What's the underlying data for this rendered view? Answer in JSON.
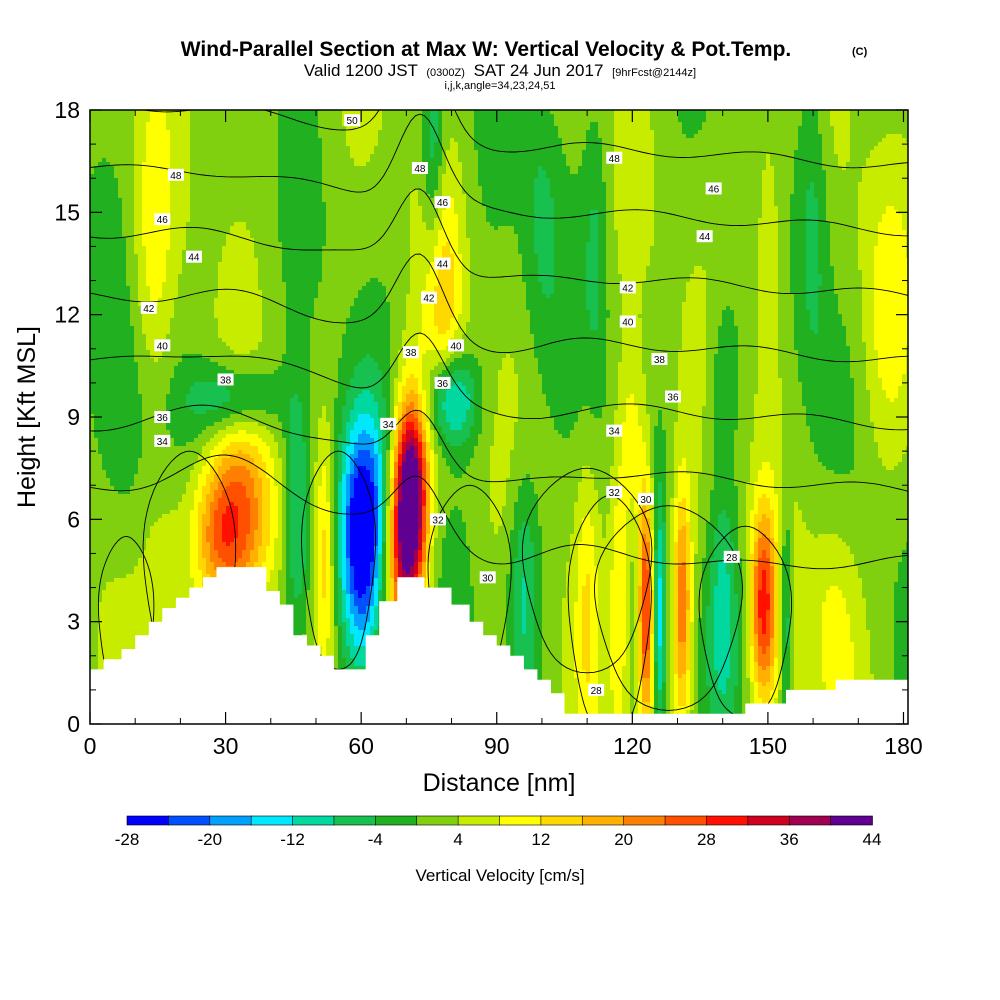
{
  "header": {
    "title": "Wind-Parallel Section at Max W: Vertical Velocity & Pot.Temp.",
    "title_tag": "(C)",
    "sub_valid": "Valid 1200 JST",
    "sub_zulu": "(0300Z)",
    "sub_date": "SAT 24 Jun 2017",
    "sub_fcst": "[9hrFcst@2144z]",
    "sub_indices": "i,j,k,angle=34,23,24,51"
  },
  "chart_data": {
    "type": "heatmap",
    "title": "Wind-Parallel Section at Max W: Vertical Velocity & Pot.Temp.",
    "xlabel": "Distance [nm]",
    "ylabel": "Height [Kft MSL]",
    "xlim": [
      0,
      181
    ],
    "ylim": [
      0,
      18
    ],
    "x_ticks": [
      0,
      30,
      60,
      90,
      120,
      150,
      180
    ],
    "y_ticks": [
      0,
      3,
      6,
      9,
      12,
      15,
      18
    ],
    "x_tick_labels": [
      "0",
      "30",
      "60",
      "90",
      "120",
      "150",
      "180"
    ],
    "y_tick_labels": [
      "0",
      "3",
      "6",
      "9",
      "12",
      "15",
      "18"
    ],
    "colorbar": {
      "label": "Vertical Velocity [cm/s]",
      "bounds": [
        -28,
        -24,
        -20,
        -16,
        -12,
        -8,
        -4,
        0,
        4,
        8,
        12,
        16,
        20,
        24,
        28,
        32,
        36,
        40,
        44
      ],
      "tick_labels": [
        "-28",
        "-20",
        "-12",
        "-4",
        "4",
        "12",
        "20",
        "28",
        "36",
        "44"
      ],
      "colors": [
        "#0000ff",
        "#0050ff",
        "#00a0ff",
        "#00e8ff",
        "#00d8a0",
        "#18c050",
        "#20b020",
        "#80d010",
        "#c8ec00",
        "#ffff00",
        "#ffd800",
        "#ffb000",
        "#ff8000",
        "#ff5000",
        "#ff1000",
        "#d00020",
        "#a00050",
        "#600090"
      ]
    },
    "terrain_kft": [
      [
        0,
        1.6
      ],
      [
        3,
        1.6
      ],
      [
        3,
        1.9
      ],
      [
        7,
        1.9
      ],
      [
        7,
        2.2
      ],
      [
        10,
        2.2
      ],
      [
        10,
        2.6
      ],
      [
        13,
        2.6
      ],
      [
        13,
        3.0
      ],
      [
        16,
        3.0
      ],
      [
        16,
        3.4
      ],
      [
        19,
        3.4
      ],
      [
        19,
        3.7
      ],
      [
        22,
        3.7
      ],
      [
        22,
        4.0
      ],
      [
        25,
        4.0
      ],
      [
        25,
        4.3
      ],
      [
        28,
        4.3
      ],
      [
        28,
        4.6
      ],
      [
        39,
        4.6
      ],
      [
        39,
        3.9
      ],
      [
        42,
        3.9
      ],
      [
        42,
        3.5
      ],
      [
        45,
        3.5
      ],
      [
        45,
        2.6
      ],
      [
        48,
        2.6
      ],
      [
        48,
        2.3
      ],
      [
        51,
        2.3
      ],
      [
        51,
        2.0
      ],
      [
        54,
        2.0
      ],
      [
        54,
        1.6
      ],
      [
        61,
        1.6
      ],
      [
        61,
        2.6
      ],
      [
        64,
        2.6
      ],
      [
        64,
        3.6
      ],
      [
        68,
        3.6
      ],
      [
        68,
        4.3
      ],
      [
        74,
        4.3
      ],
      [
        74,
        4.0
      ],
      [
        80,
        4.0
      ],
      [
        80,
        3.5
      ],
      [
        84,
        3.5
      ],
      [
        84,
        3.0
      ],
      [
        87,
        3.0
      ],
      [
        87,
        2.6
      ],
      [
        90,
        2.6
      ],
      [
        90,
        2.3
      ],
      [
        93,
        2.3
      ],
      [
        93,
        2.0
      ],
      [
        96,
        2.0
      ],
      [
        96,
        1.6
      ],
      [
        99,
        1.6
      ],
      [
        99,
        1.3
      ],
      [
        102,
        1.3
      ],
      [
        102,
        0.9
      ],
      [
        105,
        0.9
      ],
      [
        105,
        0.3
      ],
      [
        145,
        0.3
      ],
      [
        145,
        0.6
      ],
      [
        154,
        0.6
      ],
      [
        154,
        1.0
      ],
      [
        165,
        1.0
      ],
      [
        165,
        1.3
      ],
      [
        181,
        1.3
      ]
    ],
    "w_features": [
      {
        "x": 34,
        "z": 6.0,
        "w": 20,
        "sx": 5,
        "sz": 2.0
      },
      {
        "x": 28,
        "z": 5.5,
        "w": 14,
        "sx": 4,
        "sz": 1.5
      },
      {
        "x": 18,
        "z": 5.0,
        "w": 6,
        "sx": 5,
        "sz": 2.0
      },
      {
        "x": 46,
        "z": 6.0,
        "w": -14,
        "sx": 2.2,
        "sz": 2.5
      },
      {
        "x": 52,
        "z": 5.0,
        "w": 10,
        "sx": 1.4,
        "sz": 2.5
      },
      {
        "x": 60,
        "z": 5.0,
        "w": -26,
        "sx": 3.5,
        "sz": 2.5
      },
      {
        "x": 62,
        "z": 6.5,
        "w": -10,
        "sx": 5,
        "sz": 2.0
      },
      {
        "x": 71,
        "z": 6.8,
        "w": 44,
        "sx": 2.6,
        "sz": 2.0
      },
      {
        "x": 69,
        "z": 5.0,
        "w": 22,
        "sx": 3.0,
        "sz": 2.0
      },
      {
        "x": 32,
        "z": 9.5,
        "w": -13,
        "sx": 7,
        "sz": 0.8
      },
      {
        "x": 80,
        "z": 9.5,
        "w": -18,
        "sx": 4,
        "sz": 1.0
      },
      {
        "x": 78,
        "z": 12.5,
        "w": 11,
        "sx": 3.0,
        "sz": 2.5
      },
      {
        "x": 76,
        "z": 16.5,
        "w": -11,
        "sx": 1.8,
        "sz": 2.5
      },
      {
        "x": 96,
        "z": 4.0,
        "w": -12,
        "sx": 2.5,
        "sz": 2.5
      },
      {
        "x": 110,
        "z": 3.5,
        "w": 8,
        "sx": 1.8,
        "sz": 3.0
      },
      {
        "x": 117,
        "z": 3.5,
        "w": 10,
        "sx": 1.5,
        "sz": 3.0
      },
      {
        "x": 123,
        "z": 3.5,
        "w": 30,
        "sx": 1.2,
        "sz": 2.5
      },
      {
        "x": 126,
        "z": 3.0,
        "w": -14,
        "sx": 0.9,
        "sz": 2.5
      },
      {
        "x": 131,
        "z": 3.5,
        "w": 22,
        "sx": 1.5,
        "sz": 2.5
      },
      {
        "x": 140,
        "z": 3.5,
        "w": -11,
        "sx": 2.5,
        "sz": 2.5
      },
      {
        "x": 149,
        "z": 3.5,
        "w": 26,
        "sx": 2.0,
        "sz": 2.0
      },
      {
        "x": 154,
        "z": 3.0,
        "w": -12,
        "sx": 0.9,
        "sz": 2.5
      },
      {
        "x": 165,
        "z": 3.0,
        "w": 8,
        "sx": 4.0,
        "sz": 2.5
      },
      {
        "x": 120,
        "z": 8.0,
        "w": 10,
        "sx": 2.0,
        "sz": 2.0
      },
      {
        "x": 100,
        "z": 15.0,
        "w": -6,
        "sx": 3.0,
        "sz": 3.0
      },
      {
        "x": 112,
        "z": 14.0,
        "w": -6,
        "sx": 2.0,
        "sz": 3.0
      },
      {
        "x": 150,
        "z": 13.5,
        "w": 8,
        "sx": 2.5,
        "sz": 3.5
      },
      {
        "x": 160,
        "z": 15.0,
        "w": -8,
        "sx": 2.5,
        "sz": 3.5
      },
      {
        "x": 14,
        "z": 14.0,
        "w": 7,
        "sx": 3.0,
        "sz": 3.0
      },
      {
        "x": 8,
        "z": 8.0,
        "w": -4,
        "sx": 4.0,
        "sz": 3.0
      },
      {
        "x": 140,
        "z": 10.0,
        "w": -7,
        "sx": 2.5,
        "sz": 2.0
      },
      {
        "x": 176,
        "z": 12.0,
        "w": 6,
        "sx": 4.0,
        "sz": 3.0
      }
    ],
    "theta_levels_K": [
      28,
      30,
      32,
      34,
      36,
      38,
      40,
      42,
      44,
      46,
      48,
      50
    ],
    "theta_labels": [
      {
        "text": "50",
        "x": 58,
        "z": 17.7
      },
      {
        "text": "48",
        "x": 19,
        "z": 16.1
      },
      {
        "text": "48",
        "x": 73,
        "z": 16.3
      },
      {
        "text": "48",
        "x": 116,
        "z": 16.6
      },
      {
        "text": "46",
        "x": 16,
        "z": 14.8
      },
      {
        "text": "46",
        "x": 78,
        "z": 15.3
      },
      {
        "text": "46",
        "x": 138,
        "z": 15.7
      },
      {
        "text": "44",
        "x": 23,
        "z": 13.7
      },
      {
        "text": "44",
        "x": 78,
        "z": 13.5
      },
      {
        "text": "44",
        "x": 136,
        "z": 14.3
      },
      {
        "text": "42",
        "x": 13,
        "z": 12.2
      },
      {
        "text": "42",
        "x": 75,
        "z": 12.5
      },
      {
        "text": "42",
        "x": 119,
        "z": 12.8
      },
      {
        "text": "40",
        "x": 16,
        "z": 11.1
      },
      {
        "text": "40",
        "x": 81,
        "z": 11.1
      },
      {
        "text": "40",
        "x": 119,
        "z": 11.8
      },
      {
        "text": "38",
        "x": 30,
        "z": 10.1
      },
      {
        "text": "38",
        "x": 71,
        "z": 10.9
      },
      {
        "text": "38",
        "x": 126,
        "z": 10.7
      },
      {
        "text": "36",
        "x": 16,
        "z": 9.0
      },
      {
        "text": "36",
        "x": 78,
        "z": 10.0
      },
      {
        "text": "36",
        "x": 129,
        "z": 9.6
      },
      {
        "text": "34",
        "x": 16,
        "z": 8.3
      },
      {
        "text": "34",
        "x": 66,
        "z": 8.8
      },
      {
        "text": "34",
        "x": 116,
        "z": 8.6
      },
      {
        "text": "32",
        "x": 116,
        "z": 6.8
      },
      {
        "text": "32",
        "x": 77,
        "z": 6.0
      },
      {
        "text": "30",
        "x": 123,
        "z": 6.6
      },
      {
        "text": "30",
        "x": 88,
        "z": 4.3
      },
      {
        "text": "28",
        "x": 142,
        "z": 4.9
      },
      {
        "text": "28",
        "x": 112,
        "z": 1.0
      }
    ]
  }
}
